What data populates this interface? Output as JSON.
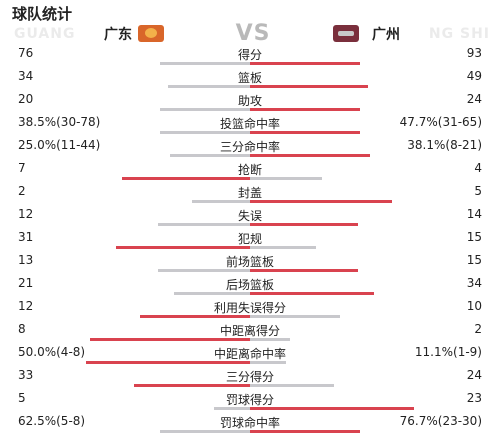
{
  "title": "球队统计",
  "home": {
    "name": "广东",
    "bg_text": "GUANG",
    "logo": "guangdong-team-logo"
  },
  "away": {
    "name": "广州",
    "bg_text": "NG SHI",
    "logo": "guangzhou-team-logo"
  },
  "vs": "VS",
  "colors": {
    "leading": "#d9434f",
    "trailing": "#c8c8cc"
  },
  "stats": [
    {
      "label": "得分",
      "home": "76",
      "away": "93",
      "home_share": 0.45,
      "away_share": 0.55
    },
    {
      "label": "篮板",
      "home": "34",
      "away": "49",
      "home_share": 0.41,
      "away_share": 0.59
    },
    {
      "label": "助攻",
      "home": "20",
      "away": "24",
      "home_share": 0.45,
      "away_share": 0.55
    },
    {
      "label": "投篮命中率",
      "home": "38.5%(30-78)",
      "away": "47.7%(31-65)",
      "home_share": 0.45,
      "away_share": 0.55
    },
    {
      "label": "三分命中率",
      "home": "25.0%(11-44)",
      "away": "38.1%(8-21)",
      "home_share": 0.4,
      "away_share": 0.6
    },
    {
      "label": "抢断",
      "home": "7",
      "away": "4",
      "home_share": 0.64,
      "away_share": 0.36
    },
    {
      "label": "封盖",
      "home": "2",
      "away": "5",
      "home_share": 0.29,
      "away_share": 0.71
    },
    {
      "label": "失误",
      "home": "12",
      "away": "14",
      "home_share": 0.46,
      "away_share": 0.54
    },
    {
      "label": "犯规",
      "home": "31",
      "away": "15",
      "home_share": 0.67,
      "away_share": 0.33
    },
    {
      "label": "前场篮板",
      "home": "13",
      "away": "15",
      "home_share": 0.46,
      "away_share": 0.54
    },
    {
      "label": "后场篮板",
      "home": "21",
      "away": "34",
      "home_share": 0.38,
      "away_share": 0.62
    },
    {
      "label": "利用失误得分",
      "home": "12",
      "away": "10",
      "home_share": 0.55,
      "away_share": 0.45
    },
    {
      "label": "中距离得分",
      "home": "8",
      "away": "2",
      "home_share": 0.8,
      "away_share": 0.2
    },
    {
      "label": "中距离命中率",
      "home": "50.0%(4-8)",
      "away": "11.1%(1-9)",
      "home_share": 0.82,
      "away_share": 0.18
    },
    {
      "label": "三分得分",
      "home": "33",
      "away": "24",
      "home_share": 0.58,
      "away_share": 0.42
    },
    {
      "label": "罚球得分",
      "home": "5",
      "away": "23",
      "home_share": 0.18,
      "away_share": 0.82
    },
    {
      "label": "罚球命中率",
      "home": "62.5%(5-8)",
      "away": "76.7%(23-30)",
      "home_share": 0.45,
      "away_share": 0.55
    }
  ]
}
